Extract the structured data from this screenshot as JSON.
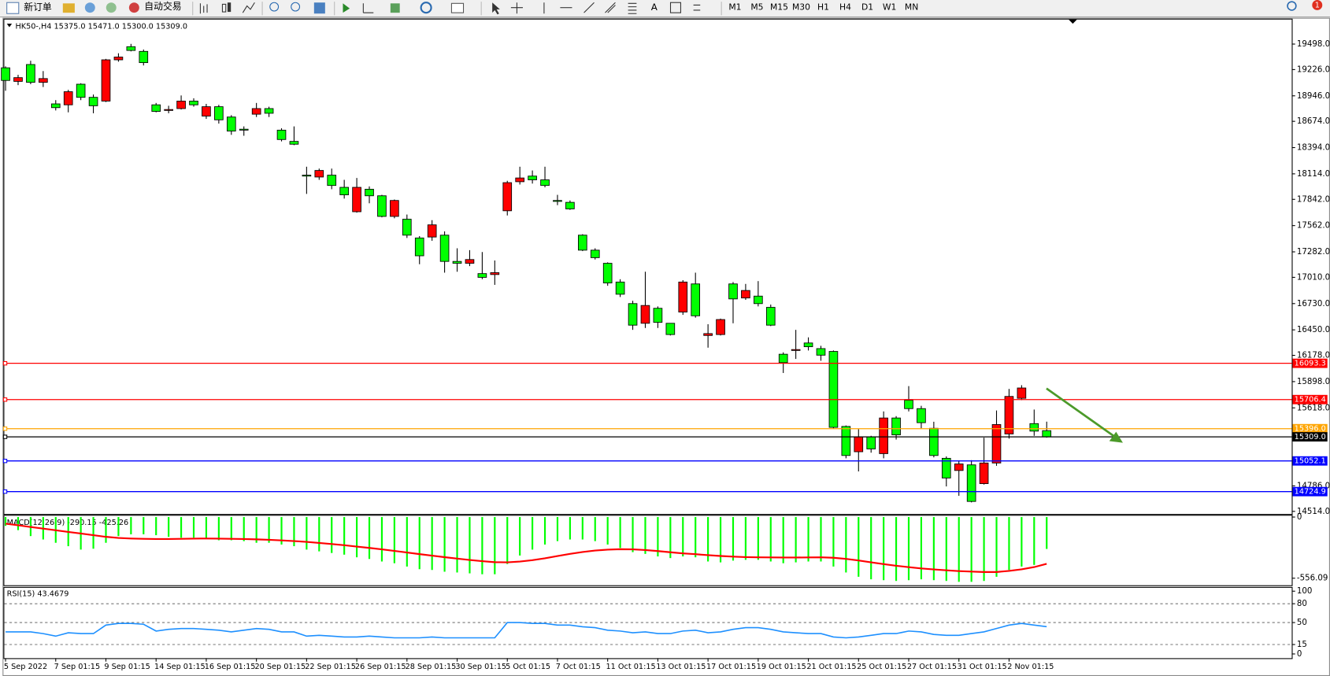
{
  "toolbar": {
    "new_order": "新订单",
    "auto_trading": "自动交易",
    "timeframes": [
      "M1",
      "M5",
      "M15",
      "M30",
      "H1",
      "H4",
      "D1",
      "W1",
      "MN"
    ],
    "notifications": 1
  },
  "chart_data": [
    {
      "type": "candlestick",
      "title": "HK50-,H4 15375.0 15471.0 15300.0 15309.0",
      "categories": [
        "5 Sep 2022",
        null,
        null,
        null,
        "7 Sep 01:15",
        null,
        null,
        null,
        "9 Sep 01:15",
        null,
        null,
        null,
        "14 Sep 01:15",
        null,
        null,
        null,
        "16 Sep 01:15",
        null,
        null,
        null,
        "20 Sep 01:15",
        null,
        null,
        null,
        "22 Sep 01:15",
        null,
        null,
        null,
        "26 Sep 01:15",
        null,
        null,
        null,
        "28 Sep 01:15",
        null,
        null,
        null,
        "30 Sep 01:15",
        null,
        null,
        null,
        "5 Oct 01:15",
        null,
        null,
        null,
        "7 Oct 01:15",
        null,
        null,
        null,
        "11 Oct 01:15",
        null,
        null,
        null,
        "13 Oct 01:15",
        null,
        null,
        null,
        "17 Oct 01:15",
        null,
        null,
        null,
        "19 Oct 01:15",
        null,
        null,
        null,
        "21 Oct 01:15",
        null,
        null,
        null,
        "25 Oct 01:15",
        null,
        null,
        null,
        "27 Oct 01:15",
        null,
        null,
        null,
        "31 Oct 01:15",
        null,
        null,
        null,
        "2 Nov 01:15",
        null,
        null,
        null
      ],
      "open": [
        19245,
        19100,
        19280,
        19090,
        18860,
        18850,
        19070,
        18930,
        18890,
        19330,
        19470,
        19420,
        18850,
        18790,
        18810,
        18890,
        18730,
        18830,
        18720,
        18590,
        18750,
        18810,
        18580,
        18460,
        18100,
        18080,
        18100,
        17970,
        17710,
        17950,
        17880,
        17660,
        17630,
        17430,
        17440,
        17460,
        17180,
        17160,
        17050,
        17040,
        17720,
        18030,
        18090,
        18050,
        17830,
        17810,
        17460,
        17300,
        17160,
        16960,
        16730,
        16520,
        16680,
        16520,
        16640,
        16940,
        16390,
        16400,
        16940,
        16790,
        16810,
        16690,
        16190,
        16230,
        16310,
        16250,
        16220,
        15420,
        15150,
        15310,
        15130,
        15510,
        15700,
        15610,
        15400,
        15080,
        14950,
        15010,
        14810,
        15030,
        15340,
        15720,
        15450,
        15375
      ],
      "high": [
        19260,
        19170,
        19320,
        19210,
        18900,
        19010,
        19080,
        18960,
        19340,
        19400,
        19500,
        19440,
        18870,
        18840,
        18950,
        18920,
        18860,
        18850,
        18740,
        18620,
        18870,
        18830,
        18600,
        18620,
        18190,
        18170,
        18170,
        18050,
        18070,
        17980,
        17890,
        17840,
        17680,
        17450,
        17620,
        17500,
        17320,
        17300,
        17280,
        17190,
        18040,
        18190,
        18150,
        18190,
        17890,
        17830,
        17470,
        17320,
        17170,
        16990,
        16760,
        17070,
        16700,
        16520,
        16980,
        17060,
        16510,
        16570,
        16960,
        16940,
        16970,
        16720,
        16210,
        16450,
        16370,
        16280,
        16230,
        15430,
        15390,
        15320,
        15580,
        15530,
        15850,
        15640,
        15470,
        15100,
        15050,
        15060,
        15300,
        15590,
        15820,
        15860,
        15600,
        15471
      ],
      "low": [
        19000,
        19060,
        19070,
        19040,
        18790,
        18770,
        18900,
        18760,
        18880,
        19310,
        19420,
        19270,
        18770,
        18760,
        18800,
        18830,
        18700,
        18650,
        18530,
        18520,
        18720,
        18720,
        18460,
        18420,
        17900,
        18050,
        17950,
        17850,
        17700,
        17800,
        17650,
        17640,
        17430,
        17150,
        17400,
        17060,
        17070,
        17130,
        16990,
        16930,
        17670,
        18000,
        18010,
        17970,
        17780,
        17730,
        17290,
        17200,
        16920,
        16800,
        16450,
        16470,
        16470,
        16390,
        16610,
        16580,
        16260,
        16390,
        16520,
        16770,
        16700,
        16490,
        15990,
        16140,
        16230,
        16120,
        15400,
        15080,
        14940,
        15140,
        15080,
        15280,
        15580,
        15400,
        15090,
        14780,
        14680,
        14610,
        14800,
        15000,
        15290,
        15700,
        15320,
        15300
      ],
      "close": [
        19110,
        19140,
        19090,
        19130,
        18820,
        18990,
        18930,
        18840,
        19330,
        19360,
        19430,
        19300,
        18780,
        18800,
        18890,
        18850,
        18830,
        18690,
        18570,
        18580,
        18810,
        18760,
        18480,
        18430,
        18090,
        18150,
        17990,
        17890,
        17970,
        17880,
        17660,
        17830,
        17460,
        17240,
        17570,
        17180,
        17160,
        17200,
        17010,
        17060,
        18020,
        18070,
        18050,
        17990,
        17820,
        17740,
        17300,
        17220,
        16950,
        16830,
        16500,
        16710,
        16530,
        16400,
        16960,
        16600,
        16410,
        16560,
        16780,
        16870,
        16730,
        16500,
        16100,
        16240,
        16270,
        16180,
        15410,
        15110,
        15310,
        15180,
        15510,
        15330,
        15610,
        15460,
        15110,
        14870,
        15020,
        14620,
        15030,
        15440,
        15740,
        15830,
        15370,
        15309
      ],
      "up_color": "#ff0000",
      "down_color": "#00ff00",
      "ylim": [
        14486,
        19769
      ],
      "yticks": [
        {
          "value": 19498,
          "label": "19498.0"
        },
        {
          "value": 19226,
          "label": "19226.0"
        },
        {
          "value": 18946,
          "label": "18946.0"
        },
        {
          "value": 18674,
          "label": "18674.0"
        },
        {
          "value": 18394,
          "label": "18394.0"
        },
        {
          "value": 18114,
          "label": "18114.0"
        },
        {
          "value": 17842,
          "label": "17842.0"
        },
        {
          "value": 17562,
          "label": "17562.0"
        },
        {
          "value": 17282,
          "label": "17282.0"
        },
        {
          "value": 17010,
          "label": "17010.0"
        },
        {
          "value": 16730,
          "label": "16730.0"
        },
        {
          "value": 16450,
          "label": "16450.0"
        },
        {
          "value": 16178,
          "label": "16178.0"
        },
        {
          "value": 15898,
          "label": "15898.0"
        },
        {
          "value": 15618,
          "label": "15618.0"
        },
        {
          "value": 14786,
          "label": "14786.0"
        },
        {
          "value": 14514,
          "label": "14514.0"
        }
      ],
      "hlines": [
        {
          "value": 16093.3,
          "label": "16093.3",
          "color": "#ff0000"
        },
        {
          "value": 15706.4,
          "label": "15706.4",
          "color": "#ff0000"
        },
        {
          "value": 15396,
          "label": "15396.0",
          "color": "#ffa500"
        },
        {
          "value": 15309,
          "label": "15309.0",
          "color": "#000000"
        },
        {
          "value": 15052.1,
          "label": "15052.1",
          "color": "#0000ff"
        },
        {
          "value": 14724.9,
          "label": "14724.9",
          "color": "#0000ff"
        }
      ]
    },
    {
      "type": "macd",
      "title": "MACD(12,26,9) -290.15 -425.26",
      "histogram": [
        -80,
        -119,
        -173,
        -204,
        -234,
        -265,
        -296,
        -288,
        -234,
        -173,
        -157,
        -157,
        -165,
        -180,
        -188,
        -188,
        -196,
        -211,
        -211,
        -219,
        -234,
        -234,
        -250,
        -265,
        -296,
        -312,
        -327,
        -342,
        -366,
        -381,
        -404,
        -420,
        -450,
        -474,
        -481,
        -497,
        -504,
        -512,
        -520,
        -520,
        -427,
        -350,
        -296,
        -250,
        -219,
        -204,
        -204,
        -219,
        -250,
        -281,
        -319,
        -335,
        -358,
        -373,
        -358,
        -366,
        -404,
        -412,
        -396,
        -389,
        -389,
        -404,
        -420,
        -412,
        -404,
        -404,
        -450,
        -504,
        -543,
        -566,
        -574,
        -581,
        -574,
        -566,
        -574,
        -581,
        -589,
        -589,
        -581,
        -543,
        -481,
        -450,
        -435,
        -290.15
      ],
      "signal": [
        -60,
        -75,
        -90,
        -105,
        -120,
        -135,
        -150,
        -165,
        -180,
        -190,
        -195,
        -198,
        -200,
        -200,
        -198,
        -196,
        -195,
        -196,
        -198,
        -200,
        -203,
        -207,
        -212,
        -218,
        -226,
        -235,
        -245,
        -256,
        -268,
        -281,
        -294,
        -308,
        -322,
        -337,
        -351,
        -365,
        -378,
        -390,
        -401,
        -410,
        -412,
        -405,
        -392,
        -375,
        -355,
        -335,
        -318,
        -305,
        -296,
        -292,
        -294,
        -300,
        -309,
        -320,
        -330,
        -338,
        -346,
        -354,
        -360,
        -364,
        -366,
        -367,
        -368,
        -368,
        -367,
        -366,
        -370,
        -380,
        -395,
        -412,
        -428,
        -443,
        -456,
        -467,
        -476,
        -484,
        -491,
        -496,
        -500,
        -500,
        -490,
        -475,
        -455,
        -425.26
      ],
      "histogram_color": "#00ff00",
      "signal_color": "#ff0000",
      "ylim": [
        -620,
        20
      ],
      "yticks": [
        0,
        -556.09
      ]
    },
    {
      "type": "rsi",
      "title": "RSI(15) 43.4679",
      "values": [
        35.1,
        35.1,
        35.1,
        32.4,
        28.4,
        33.8,
        32.4,
        32.4,
        45.9,
        48.6,
        48.6,
        47.3,
        36.5,
        39.2,
        40.5,
        40.5,
        39.2,
        37.8,
        35.1,
        37.8,
        40.5,
        39.2,
        35.1,
        35.1,
        28.4,
        29.7,
        28.4,
        27.0,
        27.0,
        28.4,
        27.0,
        25.7,
        25.7,
        25.7,
        27.0,
        25.7,
        25.7,
        25.7,
        25.7,
        25.7,
        50.0,
        50.0,
        48.6,
        48.6,
        45.9,
        45.9,
        43.2,
        41.9,
        37.8,
        36.5,
        33.8,
        35.1,
        32.4,
        32.4,
        36.5,
        37.8,
        33.8,
        35.1,
        39.2,
        41.9,
        41.9,
        39.2,
        35.1,
        33.8,
        32.4,
        32.4,
        27.0,
        25.7,
        27.0,
        29.7,
        32.4,
        32.4,
        36.5,
        35.1,
        31.1,
        29.7,
        29.7,
        32.4,
        35.1,
        40.5,
        45.9,
        48.6,
        45.9,
        43.4679
      ],
      "color": "#1e90ff",
      "ylim": [
        0,
        100
      ],
      "yticks": [
        0,
        15,
        50,
        80,
        100
      ]
    }
  ]
}
